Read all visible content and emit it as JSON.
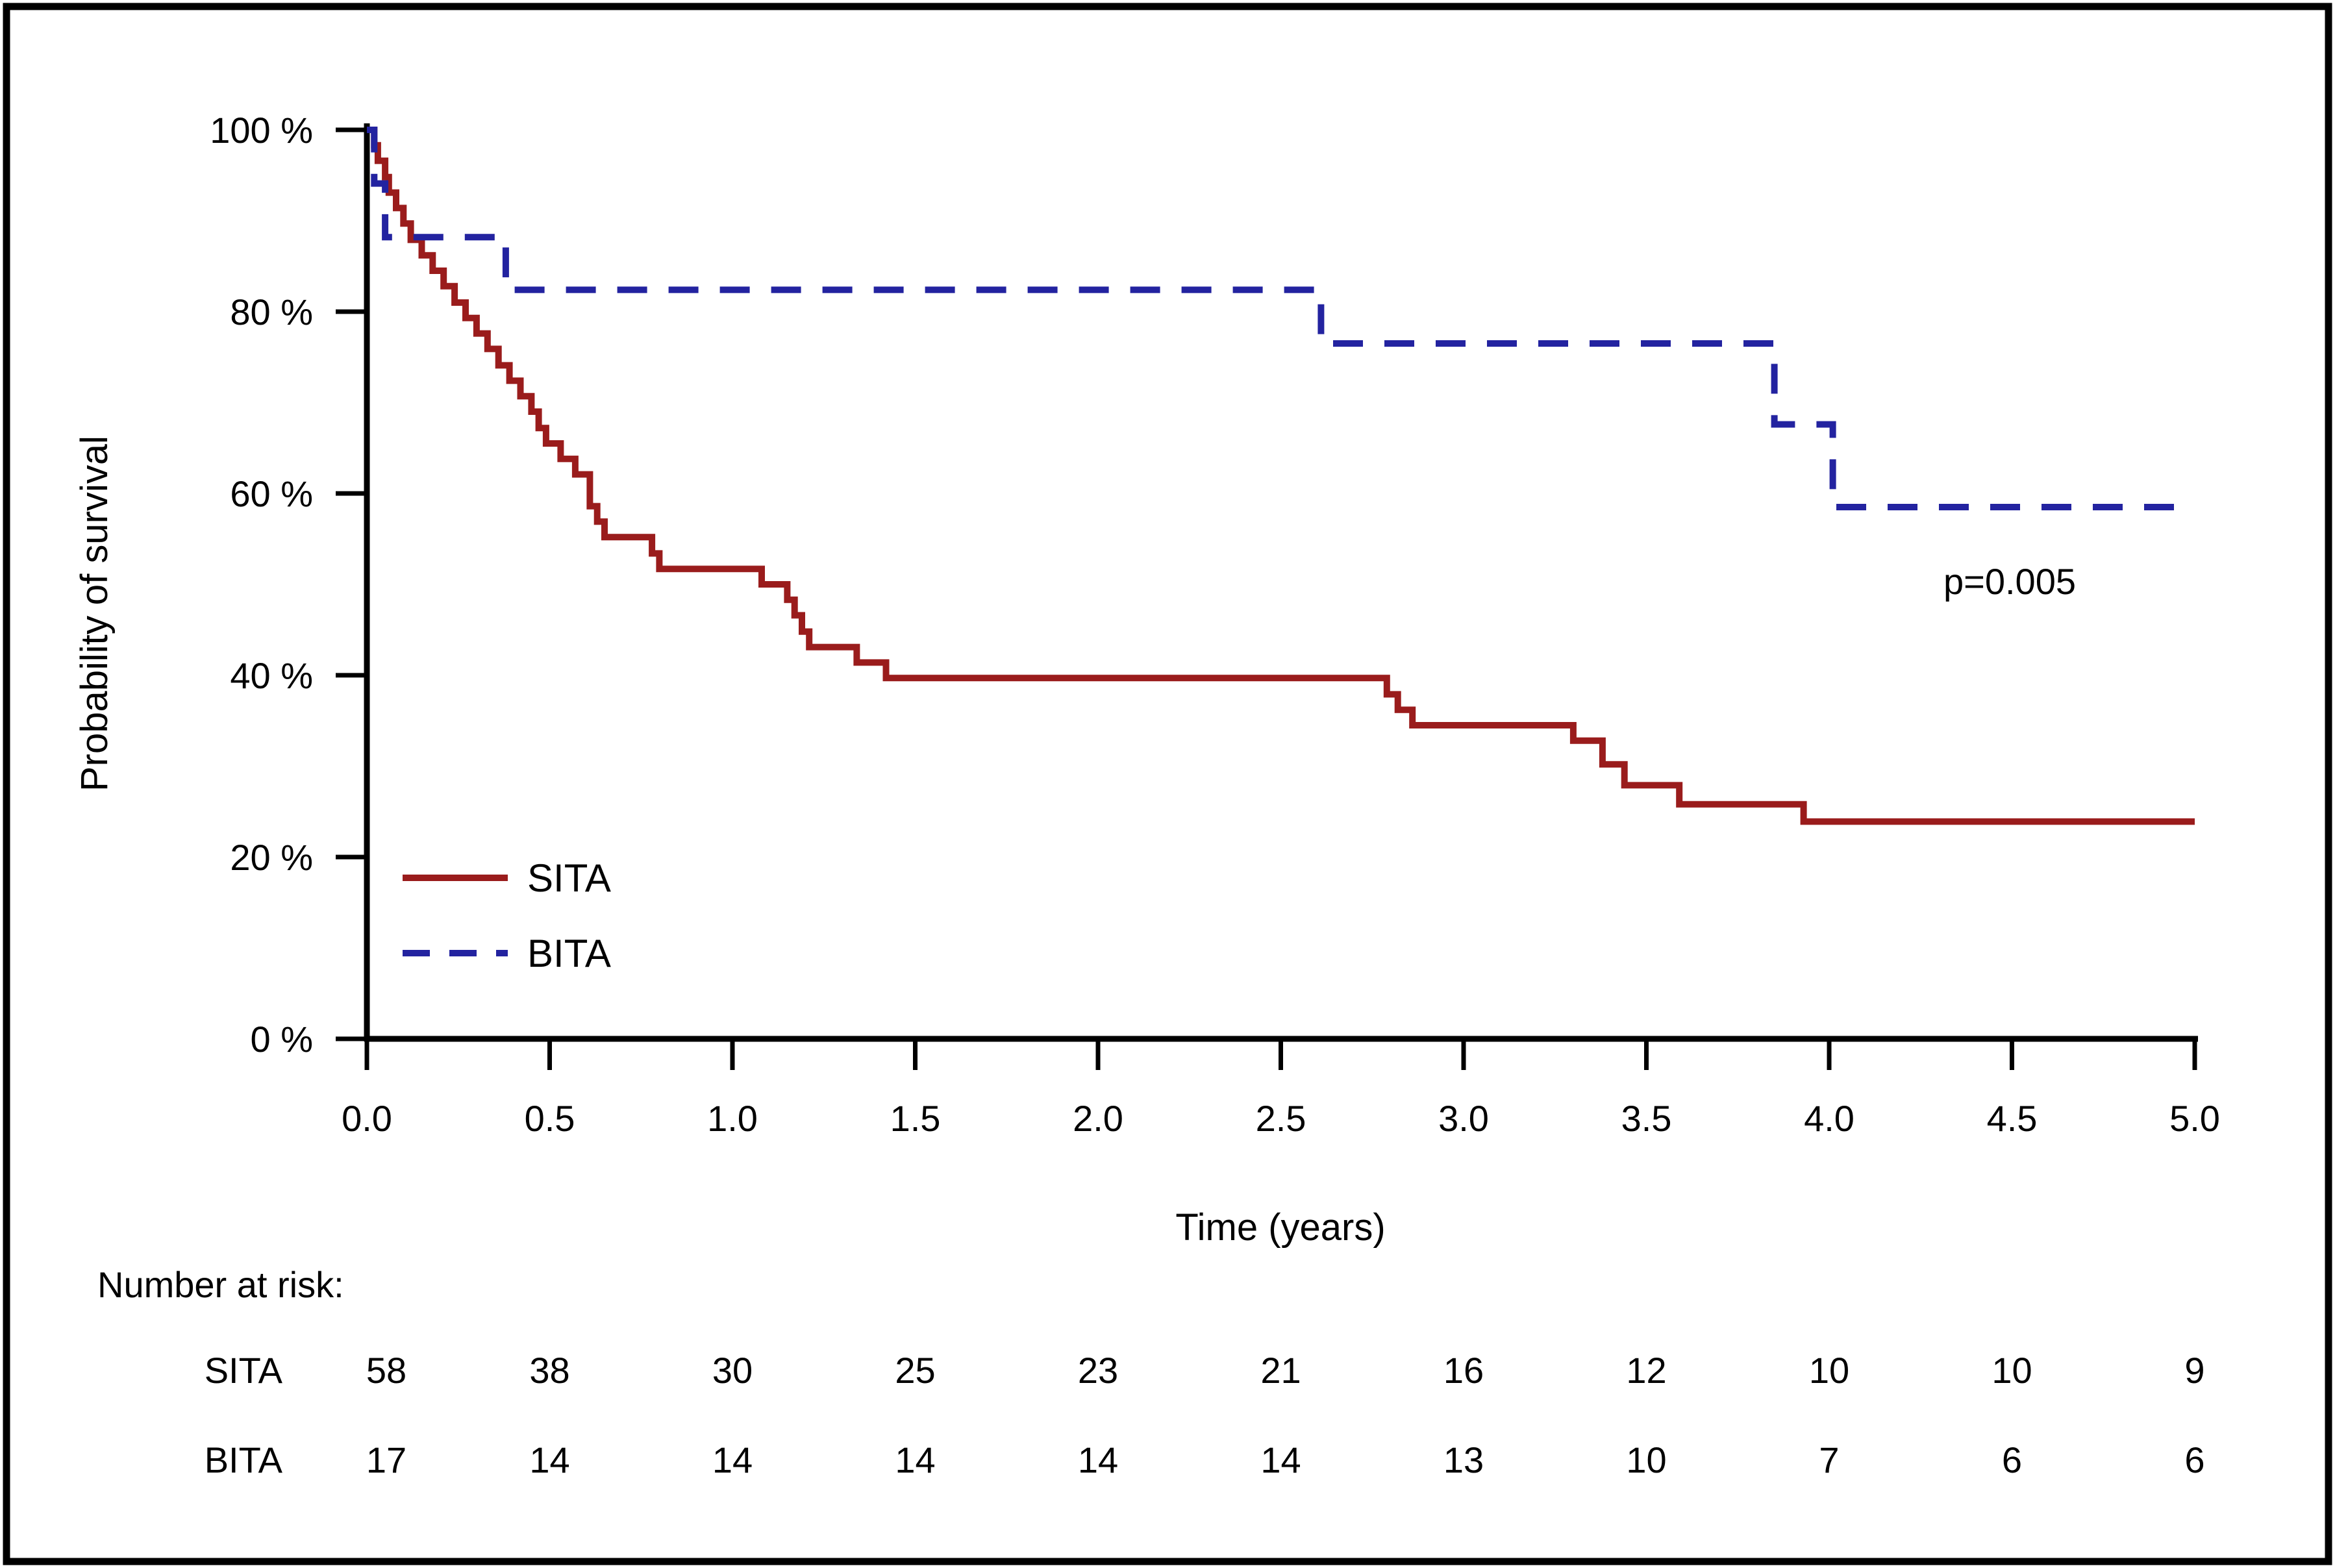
{
  "chart_data": {
    "type": "line",
    "subtype": "kaplan-meier-step",
    "title": "",
    "xlabel": "Time (years)",
    "ylabel": "Probability of survival",
    "xlim": [
      0.0,
      5.0
    ],
    "ylim": [
      0,
      100
    ],
    "grid": false,
    "legend_position": "inside-lower-left",
    "annotation": "p=0.005",
    "x_ticks": [
      {
        "value": 0.0,
        "label": "0.0"
      },
      {
        "value": 0.5,
        "label": "0.5"
      },
      {
        "value": 1.0,
        "label": "1.0"
      },
      {
        "value": 1.5,
        "label": "1.5"
      },
      {
        "value": 2.0,
        "label": "2.0"
      },
      {
        "value": 2.5,
        "label": "2.5"
      },
      {
        "value": 3.0,
        "label": "3.0"
      },
      {
        "value": 3.5,
        "label": "3.5"
      },
      {
        "value": 4.0,
        "label": "4.0"
      },
      {
        "value": 4.5,
        "label": "4.5"
      },
      {
        "value": 5.0,
        "label": "5.0"
      }
    ],
    "y_ticks": [
      {
        "value": 100,
        "label": "100 %"
      },
      {
        "value": 80,
        "label": "80 %"
      },
      {
        "value": 60,
        "label": "60 %"
      },
      {
        "value": 40,
        "label": "40 %"
      },
      {
        "value": 20,
        "label": "20 %"
      },
      {
        "value": 0,
        "label": "0 %"
      }
    ],
    "series": [
      {
        "name": "SITA",
        "color": "#9a1c1c",
        "line_style": "solid",
        "points": [
          [
            0.0,
            100.0
          ],
          [
            0.02,
            98.3
          ],
          [
            0.03,
            96.6
          ],
          [
            0.05,
            94.8
          ],
          [
            0.06,
            93.1
          ],
          [
            0.08,
            91.4
          ],
          [
            0.1,
            89.7
          ],
          [
            0.12,
            87.9
          ],
          [
            0.15,
            86.2
          ],
          [
            0.18,
            84.5
          ],
          [
            0.21,
            82.8
          ],
          [
            0.24,
            81.0
          ],
          [
            0.27,
            79.3
          ],
          [
            0.3,
            77.6
          ],
          [
            0.33,
            75.9
          ],
          [
            0.36,
            74.1
          ],
          [
            0.39,
            72.4
          ],
          [
            0.42,
            70.7
          ],
          [
            0.45,
            69.0
          ],
          [
            0.47,
            67.2
          ],
          [
            0.49,
            65.5
          ],
          [
            0.53,
            63.8
          ],
          [
            0.57,
            62.1
          ],
          [
            0.61,
            58.6
          ],
          [
            0.63,
            56.9
          ],
          [
            0.65,
            55.2
          ],
          [
            0.78,
            53.4
          ],
          [
            0.8,
            51.7
          ],
          [
            1.08,
            50.0
          ],
          [
            1.15,
            48.3
          ],
          [
            1.17,
            46.6
          ],
          [
            1.19,
            44.8
          ],
          [
            1.21,
            43.1
          ],
          [
            1.34,
            41.4
          ],
          [
            1.42,
            39.7
          ],
          [
            2.79,
            37.9
          ],
          [
            2.82,
            36.2
          ],
          [
            2.86,
            34.5
          ],
          [
            3.3,
            32.8
          ],
          [
            3.38,
            30.2
          ],
          [
            3.44,
            27.9
          ],
          [
            3.59,
            25.8
          ],
          [
            3.93,
            23.9
          ],
          [
            5.0,
            23.9
          ]
        ]
      },
      {
        "name": "BITA",
        "color": "#2323a0",
        "line_style": "dashed",
        "points": [
          [
            0.0,
            100.0
          ],
          [
            0.02,
            94.1
          ],
          [
            0.05,
            88.2
          ],
          [
            0.38,
            82.4
          ],
          [
            2.61,
            76.5
          ],
          [
            3.85,
            67.6
          ],
          [
            4.01,
            58.5
          ],
          [
            5.0,
            58.5
          ]
        ]
      }
    ],
    "legend": [
      {
        "label": "SITA",
        "color": "#9a1c1c",
        "line_style": "solid"
      },
      {
        "label": "BITA",
        "color": "#2323a0",
        "line_style": "dashed"
      }
    ]
  },
  "at_risk_table": {
    "title": "Number at risk:",
    "time_points": [
      0.0,
      0.5,
      1.0,
      1.5,
      2.0,
      2.5,
      3.0,
      3.5,
      4.0,
      4.5,
      5.0
    ],
    "rows": [
      {
        "label": "SITA",
        "counts": [
          58,
          38,
          30,
          25,
          23,
          21,
          16,
          12,
          10,
          10,
          9
        ]
      },
      {
        "label": "BITA",
        "counts": [
          17,
          14,
          14,
          14,
          14,
          14,
          13,
          10,
          7,
          6,
          6
        ]
      }
    ]
  },
  "frame": {
    "border_color": "#000000"
  }
}
